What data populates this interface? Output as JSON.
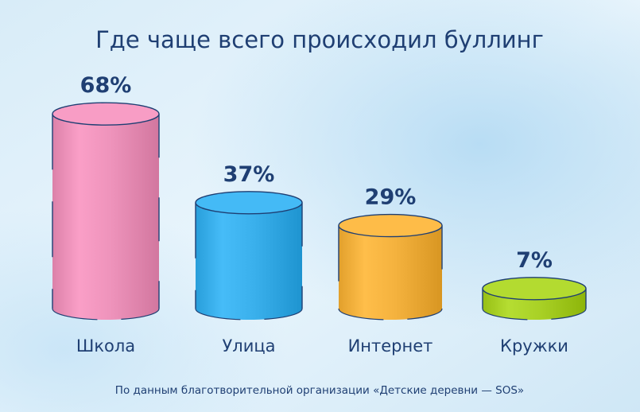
{
  "chart_data": {
    "type": "bar",
    "title": "Где чаще всего происходил буллинг",
    "categories": [
      "Школа",
      "Улица",
      "Интернет",
      "Кружки"
    ],
    "values": [
      68,
      37,
      29,
      7
    ],
    "value_labels": [
      "68%",
      "37%",
      "29%",
      "7%"
    ],
    "colors": [
      "#ee93bb",
      "#3ab0ec",
      "#f4b23e",
      "#a9d126"
    ],
    "ylim": [
      0,
      68
    ],
    "grid": false,
    "legend": "none"
  },
  "footnote": "По данным благотворительной организации «Детские деревни — SOS»",
  "colors": {
    "text": "#1f3f73",
    "background_top": "#cde6f6",
    "background_bottom": "#d9eef9"
  }
}
